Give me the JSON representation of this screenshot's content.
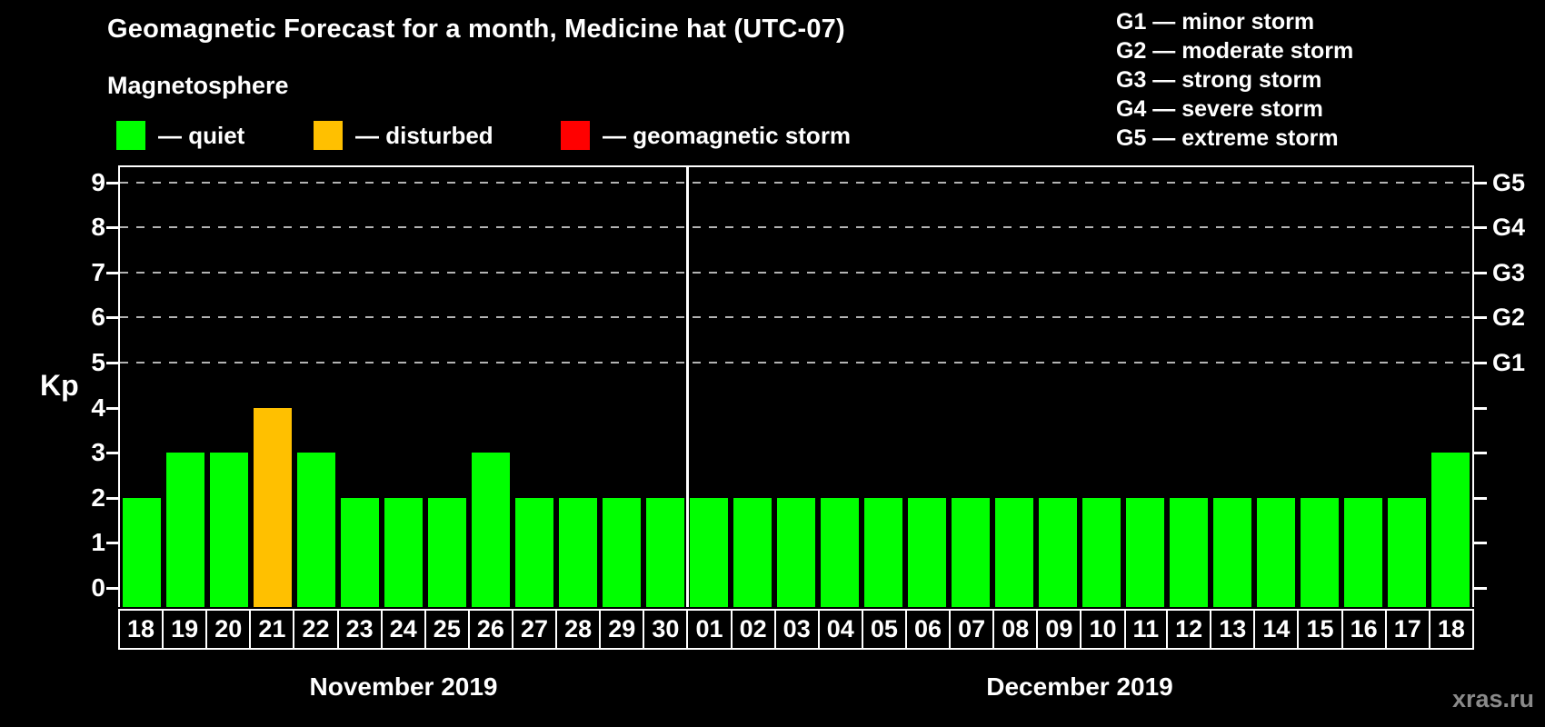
{
  "page": {
    "title": "Geomagnetic Forecast for a month, Medicine hat (UTC-07)",
    "subtitle": "Magnetosphere",
    "watermark": "xras.ru"
  },
  "legend": {
    "items": [
      {
        "name": "quiet",
        "label": "— quiet",
        "color": "#00ff00"
      },
      {
        "name": "disturbed",
        "label": "— disturbed",
        "color": "#ffc000"
      },
      {
        "name": "storm",
        "label": "— geomagnetic storm",
        "color": "#ff0000"
      }
    ]
  },
  "storm_scale": [
    "G1 — minor storm",
    "G2 — moderate storm",
    "G3 — strong storm",
    "G4 — severe storm",
    "G5 — extreme storm"
  ],
  "chart_data": {
    "type": "bar",
    "ylabel": "Kp",
    "ylim": [
      0,
      9
    ],
    "yticks": [
      0,
      1,
      2,
      3,
      4,
      5,
      6,
      7,
      8,
      9
    ],
    "gridlines_at_kp": [
      5,
      6,
      7,
      8,
      9
    ],
    "grid": "dashed horizontal at storm levels",
    "legend_position": "top",
    "right_axis": [
      {
        "kp": 5,
        "label": "G1"
      },
      {
        "kp": 6,
        "label": "G2"
      },
      {
        "kp": 7,
        "label": "G3"
      },
      {
        "kp": 8,
        "label": "G4"
      },
      {
        "kp": 9,
        "label": "G5"
      }
    ],
    "bar_colors": {
      "quiet": "#00ff00",
      "disturbed": "#ffc000",
      "storm": "#ff0000"
    },
    "months": [
      {
        "label": "November 2019",
        "days": [
          "18",
          "19",
          "20",
          "21",
          "22",
          "23",
          "24",
          "25",
          "26",
          "27",
          "28",
          "29",
          "30"
        ],
        "values": [
          2,
          3,
          3,
          4,
          3,
          2,
          2,
          2,
          3,
          2,
          2,
          2,
          2
        ],
        "states": [
          "quiet",
          "quiet",
          "quiet",
          "disturbed",
          "quiet",
          "quiet",
          "quiet",
          "quiet",
          "quiet",
          "quiet",
          "quiet",
          "quiet",
          "quiet"
        ]
      },
      {
        "label": "December 2019",
        "days": [
          "01",
          "02",
          "03",
          "04",
          "05",
          "06",
          "07",
          "08",
          "09",
          "10",
          "11",
          "12",
          "13",
          "14",
          "15",
          "16",
          "17",
          "18"
        ],
        "values": [
          2,
          2,
          2,
          2,
          2,
          2,
          2,
          2,
          2,
          2,
          2,
          2,
          2,
          2,
          2,
          2,
          2,
          3
        ],
        "states": [
          "quiet",
          "quiet",
          "quiet",
          "quiet",
          "quiet",
          "quiet",
          "quiet",
          "quiet",
          "quiet",
          "quiet",
          "quiet",
          "quiet",
          "quiet",
          "quiet",
          "quiet",
          "quiet",
          "quiet",
          "quiet"
        ]
      }
    ]
  }
}
